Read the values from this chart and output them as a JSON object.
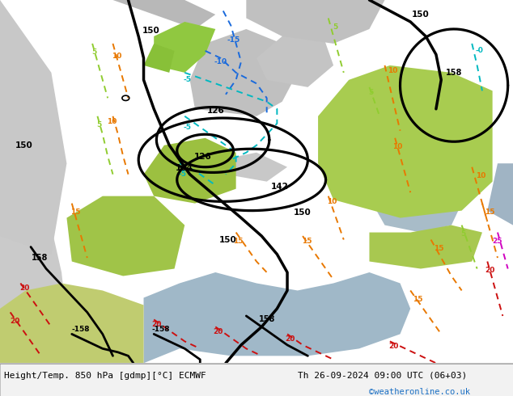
{
  "title_left": "Height/Temp. 850 hPa [gdmp][°C] ECMWF",
  "title_right": "Th 26-09-2024 09:00 UTC (06+03)",
  "credit": "©weatheronline.co.uk",
  "fig_width": 6.34,
  "fig_height": 4.9,
  "dpi": 100,
  "bottom_text_color": "#000000",
  "credit_color": "#1a6fc4",
  "map_bg": "#c8c8c8",
  "green_light": "#aac85a",
  "green_bright": "#8ec840",
  "sea_gray": "#b8b8b8",
  "atl_gray": "#d0d0d0",
  "med_blue": "#a8bcc8",
  "black_sea": "#b0bec8",
  "land_colors": {
    "iberia": "#a8c850",
    "france": "#b0cc58",
    "uk": "#a0c448",
    "scandinavia": "#b8c870",
    "east_europe": "#a8cc58",
    "north_africa": "#c0c878",
    "turkey": "#b4cc60",
    "italy": "#a8c850"
  }
}
